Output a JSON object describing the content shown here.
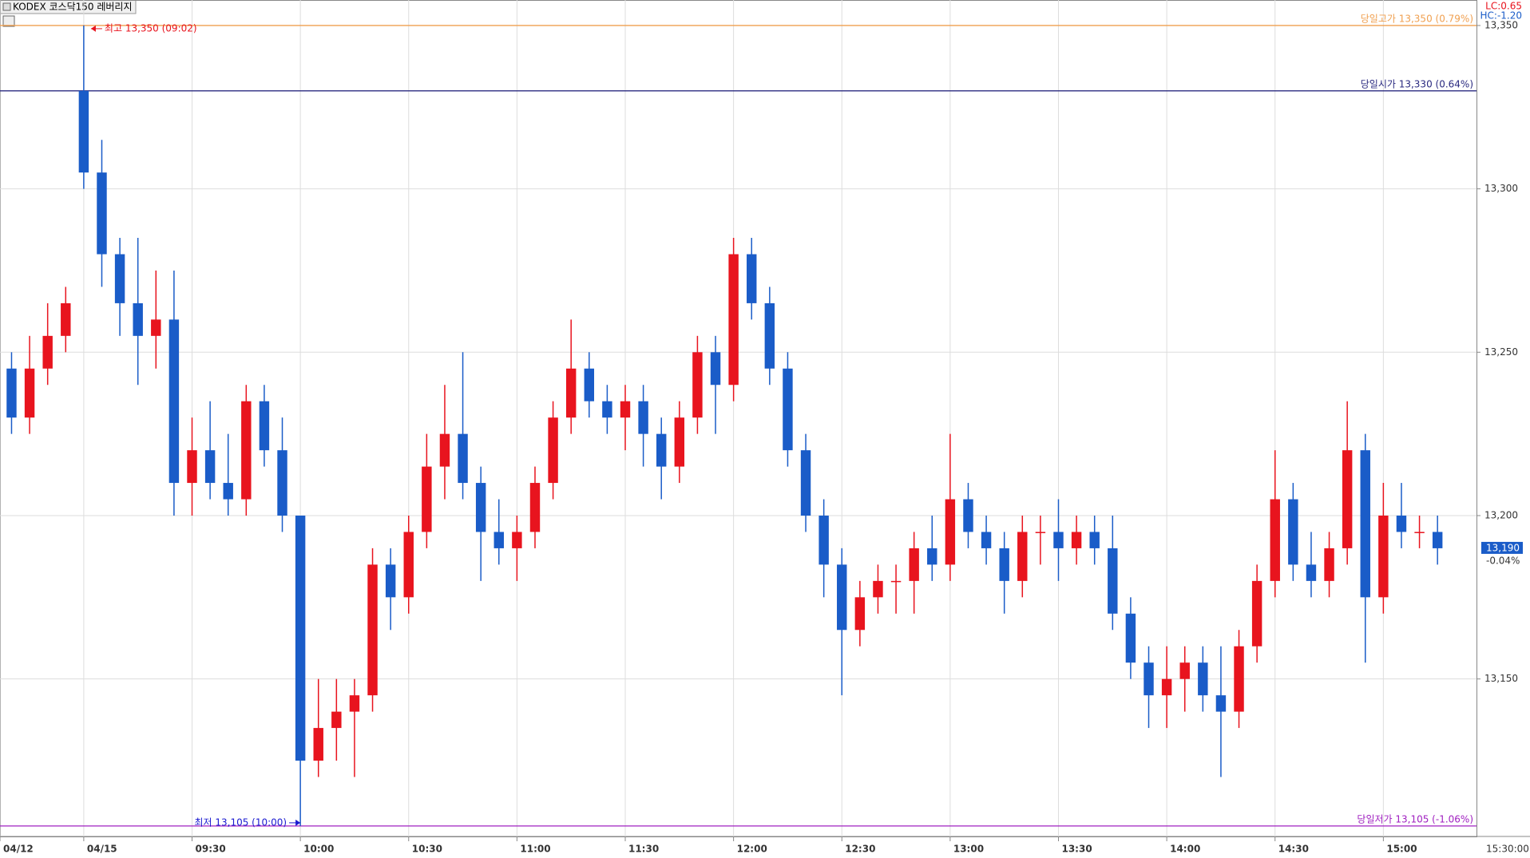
{
  "chart_data": {
    "type": "candlestick",
    "title": "KODEX 코스닥150 레버리지",
    "corner_labels": [
      {
        "text": "LC:0.65",
        "color": "#e8141e"
      },
      {
        "text": "HC:-1.20",
        "color": "#1a5cc8"
      }
    ],
    "up_color": "#e8141e",
    "down_color": "#1a5cc8",
    "grid": true,
    "ylim": [
      13101.8,
      13357.8
    ],
    "yticks": [
      {
        "value": 13150,
        "label": "13,150"
      },
      {
        "value": 13200,
        "label": "13,200"
      },
      {
        "value": 13250,
        "label": "13,250"
      },
      {
        "value": 13300,
        "label": "13,300"
      },
      {
        "value": 13350,
        "label": "13,350"
      }
    ],
    "xlim": [
      -23.2,
      385.8
    ],
    "xticks": [
      {
        "value": -23.2,
        "label": "04/12"
      },
      {
        "value": 0,
        "label": "04/15"
      },
      {
        "value": 30,
        "label": "09:30"
      },
      {
        "value": 60,
        "label": "10:00"
      },
      {
        "value": 90,
        "label": "10:30"
      },
      {
        "value": 120,
        "label": "11:00"
      },
      {
        "value": 150,
        "label": "11:30"
      },
      {
        "value": 180,
        "label": "12:00"
      },
      {
        "value": 210,
        "label": "12:30"
      },
      {
        "value": 240,
        "label": "13:00"
      },
      {
        "value": 270,
        "label": "13:30"
      },
      {
        "value": 300,
        "label": "14:00"
      },
      {
        "value": 330,
        "label": "14:30"
      },
      {
        "value": 360,
        "label": "15:00"
      }
    ],
    "axis_end_label": "15:30:00",
    "x": [
      -20,
      -15,
      -10,
      -5,
      0,
      5,
      10,
      15,
      20,
      25,
      30,
      35,
      40,
      45,
      50,
      55,
      60,
      65,
      70,
      75,
      80,
      85,
      90,
      95,
      100,
      105,
      110,
      115,
      120,
      125,
      130,
      135,
      140,
      145,
      150,
      155,
      160,
      165,
      170,
      175,
      180,
      185,
      190,
      195,
      200,
      205,
      210,
      215,
      220,
      225,
      230,
      235,
      240,
      245,
      250,
      255,
      260,
      265,
      270,
      275,
      280,
      285,
      290,
      295,
      300,
      305,
      310,
      315,
      320,
      325,
      330,
      335,
      340,
      345,
      350,
      355,
      360,
      365,
      370,
      375
    ],
    "open": [
      13245,
      13230,
      13245,
      13255,
      13330,
      13305,
      13280,
      13265,
      13255,
      13260,
      13210,
      13220,
      13210,
      13205,
      13235,
      13220,
      13200,
      13125,
      13135,
      13140,
      13145,
      13185,
      13175,
      13195,
      13215,
      13225,
      13210,
      13195,
      13190,
      13195,
      13210,
      13230,
      13245,
      13235,
      13230,
      13235,
      13225,
      13215,
      13230,
      13250,
      13240,
      13280,
      13265,
      13245,
      13220,
      13200,
      13185,
      13165,
      13175,
      13180,
      13180,
      13190,
      13185,
      13205,
      13195,
      13190,
      13180,
      13195,
      13195,
      13190,
      13195,
      13190,
      13170,
      13155,
      13145,
      13150,
      13155,
      13145,
      13140,
      13160,
      13180,
      13205,
      13185,
      13180,
      13190,
      13220,
      13175,
      13200,
      13195,
      13195
    ],
    "high": [
      13250,
      13255,
      13265,
      13270,
      13350,
      13315,
      13285,
      13285,
      13275,
      13275,
      13230,
      13235,
      13225,
      13240,
      13240,
      13230,
      13200,
      13150,
      13150,
      13150,
      13190,
      13190,
      13200,
      13225,
      13240,
      13250,
      13215,
      13205,
      13200,
      13215,
      13235,
      13260,
      13250,
      13240,
      13240,
      13240,
      13230,
      13235,
      13255,
      13255,
      13285,
      13285,
      13270,
      13250,
      13225,
      13205,
      13190,
      13180,
      13185,
      13185,
      13195,
      13200,
      13225,
      13210,
      13200,
      13195,
      13200,
      13200,
      13205,
      13200,
      13200,
      13200,
      13175,
      13160,
      13160,
      13160,
      13160,
      13160,
      13165,
      13185,
      13220,
      13210,
      13195,
      13195,
      13235,
      13225,
      13210,
      13210,
      13200,
      13200
    ],
    "low": [
      13225,
      13225,
      13240,
      13250,
      13300,
      13270,
      13255,
      13240,
      13245,
      13200,
      13200,
      13205,
      13200,
      13200,
      13215,
      13195,
      13105,
      13120,
      13125,
      13120,
      13140,
      13165,
      13170,
      13190,
      13205,
      13205,
      13180,
      13185,
      13180,
      13190,
      13205,
      13225,
      13230,
      13225,
      13220,
      13215,
      13205,
      13210,
      13225,
      13225,
      13235,
      13260,
      13240,
      13215,
      13195,
      13175,
      13145,
      13160,
      13170,
      13170,
      13170,
      13180,
      13180,
      13190,
      13185,
      13170,
      13175,
      13185,
      13180,
      13185,
      13185,
      13165,
      13150,
      13135,
      13135,
      13140,
      13140,
      13120,
      13135,
      13155,
      13175,
      13180,
      13175,
      13175,
      13185,
      13155,
      13170,
      13190,
      13190,
      13185
    ],
    "close": [
      13230,
      13245,
      13255,
      13265,
      13305,
      13280,
      13265,
      13255,
      13260,
      13210,
      13220,
      13210,
      13205,
      13235,
      13220,
      13200,
      13125,
      13135,
      13140,
      13145,
      13185,
      13175,
      13195,
      13215,
      13225,
      13210,
      13195,
      13190,
      13195,
      13210,
      13230,
      13245,
      13235,
      13230,
      13235,
      13225,
      13215,
      13230,
      13250,
      13240,
      13280,
      13265,
      13245,
      13220,
      13200,
      13185,
      13165,
      13175,
      13180,
      13180,
      13190,
      13185,
      13205,
      13195,
      13190,
      13180,
      13195,
      13195,
      13190,
      13195,
      13190,
      13170,
      13155,
      13145,
      13150,
      13155,
      13145,
      13140,
      13160,
      13180,
      13205,
      13185,
      13180,
      13190,
      13220,
      13175,
      13200,
      13195,
      13195,
      13190
    ],
    "ref_lines": [
      {
        "label": "당일고가 13,350 (0.79%)",
        "value": 13350,
        "color": "#f0a050"
      },
      {
        "label": "당일시가 13,330 (0.64%)",
        "value": 13330,
        "color": "#2a2a80"
      },
      {
        "label": "당일저가 13,105 (-1.06%)",
        "value": 13105,
        "color": "#a020c0"
      }
    ],
    "annotations": [
      {
        "text": "최고 13,350 (09:02)",
        "x": 2,
        "value": 13350,
        "color": "#e8141e",
        "side": "right"
      },
      {
        "text": "최저 13,105 (10:00)",
        "x": 60,
        "value": 13105,
        "color": "#1a1ad0",
        "side": "left"
      }
    ],
    "current": {
      "label": "13,190",
      "value": 13190,
      "change": "-0.04%",
      "color": "#1a5cc8"
    }
  }
}
